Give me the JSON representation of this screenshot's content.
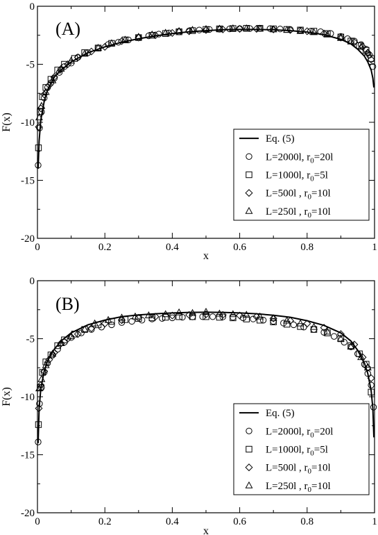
{
  "chart_data": [
    {
      "type": "line",
      "panel_label": "(A)",
      "xlabel": "x",
      "ylabel": "F(x)",
      "xlim": [
        0,
        1
      ],
      "ylim": [
        -20,
        0
      ],
      "xticks": [
        0,
        0.2,
        0.4,
        0.6,
        0.8,
        1
      ],
      "yticks": [
        0,
        -5,
        -10,
        -15,
        -20
      ],
      "xtick_labels": [
        "0",
        "0.2",
        "0.4",
        "0.6",
        "0.8",
        "1"
      ],
      "ytick_labels": [
        "0",
        "-5",
        "-10",
        "-15",
        "-20"
      ],
      "legend_position": "lower-right",
      "series": [
        {
          "name": "Eq. (5)",
          "style": "line",
          "marker": "none",
          "x": [
            0.002,
            0.005,
            0.01,
            0.02,
            0.03,
            0.05,
            0.07,
            0.1,
            0.15,
            0.2,
            0.25,
            0.3,
            0.35,
            0.4,
            0.45,
            0.5,
            0.55,
            0.6,
            0.65,
            0.7,
            0.75,
            0.8,
            0.85,
            0.9,
            0.93,
            0.95,
            0.97,
            0.98,
            0.99,
            0.995,
            0.998
          ],
          "y": [
            -14.0,
            -11.6,
            -9.8,
            -8.2,
            -7.2,
            -6.1,
            -5.5,
            -4.8,
            -4.0,
            -3.5,
            -3.1,
            -2.8,
            -2.55,
            -2.35,
            -2.2,
            -2.1,
            -2.02,
            -2.0,
            -2.0,
            -2.03,
            -2.1,
            -2.22,
            -2.45,
            -2.85,
            -3.25,
            -3.7,
            -4.3,
            -4.8,
            -5.5,
            -6.2,
            -7.0
          ]
        },
        {
          "name_parts": [
            "L=2000l, r",
            "0",
            "=20l"
          ],
          "style": "marker",
          "marker": "circle",
          "x": [
            0.002,
            0.006,
            0.012,
            0.02,
            0.03,
            0.04,
            0.05,
            0.065,
            0.08,
            0.1,
            0.12,
            0.15,
            0.18,
            0.21,
            0.24,
            0.27,
            0.3,
            0.33,
            0.36,
            0.39,
            0.42,
            0.45,
            0.48,
            0.51,
            0.54,
            0.57,
            0.6,
            0.63,
            0.66,
            0.69,
            0.72,
            0.75,
            0.78,
            0.81,
            0.84,
            0.87,
            0.9,
            0.92,
            0.94,
            0.96,
            0.975,
            0.985,
            0.995
          ],
          "y": [
            -13.7,
            -10.5,
            -9.1,
            -7.9,
            -7.0,
            -6.6,
            -6.2,
            -5.7,
            -5.2,
            -4.9,
            -4.4,
            -4.0,
            -3.6,
            -3.3,
            -3.1,
            -2.9,
            -2.7,
            -2.55,
            -2.4,
            -2.3,
            -2.2,
            -2.12,
            -2.05,
            -2.0,
            -1.97,
            -1.95,
            -1.93,
            -1.92,
            -1.92,
            -1.93,
            -1.96,
            -2.0,
            -2.08,
            -2.15,
            -2.2,
            -2.35,
            -2.6,
            -2.8,
            -3.0,
            -3.3,
            -3.7,
            -4.2,
            -5.2
          ]
        },
        {
          "name_parts": [
            "L=1000l, r",
            "0",
            "=5l"
          ],
          "style": "marker",
          "marker": "square",
          "x": [
            0.003,
            0.008,
            0.015,
            0.025,
            0.04,
            0.06,
            0.08,
            0.11,
            0.14,
            0.18,
            0.22,
            0.26,
            0.3,
            0.34,
            0.38,
            0.42,
            0.46,
            0.5,
            0.54,
            0.58,
            0.62,
            0.66,
            0.7,
            0.74,
            0.78,
            0.82,
            0.86,
            0.9,
            0.93,
            0.955,
            0.975,
            0.99
          ],
          "y": [
            -12.2,
            -9.1,
            -7.8,
            -7.0,
            -6.3,
            -5.5,
            -5.0,
            -4.5,
            -4.0,
            -3.6,
            -3.2,
            -2.9,
            -2.7,
            -2.5,
            -2.35,
            -2.2,
            -2.1,
            -2.0,
            -1.95,
            -1.92,
            -1.9,
            -1.9,
            -1.95,
            -2.0,
            -2.05,
            -2.15,
            -2.35,
            -2.65,
            -3.0,
            -3.4,
            -3.8,
            -4.5
          ]
        },
        {
          "name_parts": [
            "L=500l  , r",
            "0",
            "=10l"
          ],
          "style": "marker",
          "marker": "diamond",
          "x": [
            0.004,
            0.01,
            0.02,
            0.035,
            0.05,
            0.07,
            0.09,
            0.12,
            0.16,
            0.2,
            0.25,
            0.3,
            0.35,
            0.4,
            0.45,
            0.5,
            0.55,
            0.6,
            0.65,
            0.7,
            0.75,
            0.8,
            0.85,
            0.9,
            0.94,
            0.965,
            0.98,
            0.99
          ],
          "y": [
            -10.4,
            -8.8,
            -7.6,
            -6.8,
            -6.1,
            -5.4,
            -5.0,
            -4.4,
            -3.9,
            -3.5,
            -3.0,
            -2.7,
            -2.5,
            -2.3,
            -2.15,
            -2.05,
            -2.0,
            -1.95,
            -1.95,
            -2.0,
            -2.05,
            -2.15,
            -2.35,
            -2.7,
            -3.1,
            -3.5,
            -4.0,
            -4.6
          ]
        },
        {
          "name_parts": [
            "L=250l  , r",
            "0",
            "=10l"
          ],
          "style": "marker",
          "marker": "triangle",
          "x": [
            0.005,
            0.012,
            0.025,
            0.045,
            0.07,
            0.1,
            0.14,
            0.18,
            0.22,
            0.26,
            0.3,
            0.34,
            0.38,
            0.42,
            0.46,
            0.5,
            0.54,
            0.58,
            0.62,
            0.66,
            0.7,
            0.74,
            0.78,
            0.82,
            0.86,
            0.9,
            0.93,
            0.96,
            0.98
          ],
          "y": [
            -9.6,
            -8.6,
            -7.4,
            -6.4,
            -5.4,
            -4.7,
            -4.1,
            -3.6,
            -3.2,
            -2.9,
            -2.65,
            -2.45,
            -2.3,
            -2.15,
            -2.05,
            -1.98,
            -1.95,
            -1.92,
            -1.92,
            -1.95,
            -2.0,
            -2.05,
            -2.15,
            -2.25,
            -2.45,
            -2.75,
            -3.05,
            -3.5,
            -4.0
          ]
        }
      ]
    },
    {
      "type": "line",
      "panel_label": "(B)",
      "xlabel": "x",
      "ylabel": "F(x)",
      "xlim": [
        0,
        1
      ],
      "ylim": [
        -20,
        0
      ],
      "xticks": [
        0,
        0.2,
        0.4,
        0.6,
        0.8,
        1
      ],
      "yticks": [
        0,
        -5,
        -10,
        -15,
        -20
      ],
      "xtick_labels": [
        "0",
        "0.2",
        "0.4",
        "0.6",
        "0.8",
        "1"
      ],
      "ytick_labels": [
        "0",
        "-5",
        "-10",
        "-15",
        "-20"
      ],
      "legend_position": "lower-right",
      "series": [
        {
          "name": "Eq. (5)",
          "style": "line",
          "marker": "none",
          "x": [
            0.002,
            0.005,
            0.01,
            0.02,
            0.03,
            0.05,
            0.07,
            0.1,
            0.15,
            0.2,
            0.25,
            0.3,
            0.35,
            0.4,
            0.45,
            0.5,
            0.55,
            0.6,
            0.65,
            0.7,
            0.75,
            0.8,
            0.85,
            0.9,
            0.93,
            0.95,
            0.97,
            0.98,
            0.99,
            0.995,
            0.998
          ],
          "y": [
            -14.0,
            -11.0,
            -9.3,
            -7.8,
            -6.9,
            -5.9,
            -5.2,
            -4.5,
            -3.8,
            -3.4,
            -3.1,
            -2.95,
            -2.85,
            -2.78,
            -2.73,
            -2.72,
            -2.73,
            -2.78,
            -2.85,
            -2.98,
            -3.15,
            -3.45,
            -3.85,
            -4.5,
            -5.2,
            -6.0,
            -7.1,
            -8.0,
            -9.5,
            -11.0,
            -13.5
          ]
        },
        {
          "name_parts": [
            "L=2000l, r",
            "0",
            "=20l"
          ],
          "style": "marker",
          "marker": "circle",
          "x": [
            0.002,
            0.006,
            0.012,
            0.02,
            0.03,
            0.045,
            0.06,
            0.08,
            0.1,
            0.13,
            0.16,
            0.19,
            0.22,
            0.25,
            0.28,
            0.31,
            0.34,
            0.37,
            0.4,
            0.43,
            0.46,
            0.49,
            0.52,
            0.55,
            0.58,
            0.61,
            0.64,
            0.67,
            0.7,
            0.73,
            0.76,
            0.79,
            0.82,
            0.85,
            0.88,
            0.91,
            0.93,
            0.95,
            0.97,
            0.98,
            0.99,
            0.997
          ],
          "y": [
            -13.9,
            -10.6,
            -9.2,
            -7.9,
            -7.1,
            -6.4,
            -5.9,
            -5.3,
            -4.9,
            -4.5,
            -4.2,
            -4.0,
            -3.8,
            -3.6,
            -3.5,
            -3.4,
            -3.3,
            -3.25,
            -3.2,
            -3.15,
            -3.12,
            -3.1,
            -3.1,
            -3.12,
            -3.15,
            -3.2,
            -3.3,
            -3.4,
            -3.5,
            -3.65,
            -3.8,
            -4.0,
            -4.2,
            -4.45,
            -4.8,
            -5.3,
            -5.7,
            -6.3,
            -7.2,
            -8.0,
            -9.0,
            -10.9
          ]
        },
        {
          "name_parts": [
            "L=1000l, r",
            "0",
            "=5l"
          ],
          "style": "marker",
          "marker": "square",
          "x": [
            0.003,
            0.008,
            0.015,
            0.025,
            0.04,
            0.06,
            0.08,
            0.11,
            0.14,
            0.18,
            0.22,
            0.26,
            0.3,
            0.34,
            0.38,
            0.42,
            0.46,
            0.5,
            0.54,
            0.58,
            0.62,
            0.66,
            0.7,
            0.74,
            0.78,
            0.82,
            0.86,
            0.9,
            0.93,
            0.955,
            0.975,
            0.99
          ],
          "y": [
            -12.4,
            -9.2,
            -7.9,
            -7.0,
            -6.4,
            -5.6,
            -5.1,
            -4.6,
            -4.2,
            -3.8,
            -3.5,
            -3.35,
            -3.25,
            -3.2,
            -3.15,
            -3.1,
            -3.1,
            -3.1,
            -3.15,
            -3.2,
            -3.3,
            -3.4,
            -3.55,
            -3.75,
            -3.95,
            -4.2,
            -4.5,
            -5.0,
            -5.6,
            -6.3,
            -7.2,
            -9.6
          ]
        },
        {
          "name_parts": [
            "L=500l  , r",
            "0",
            "=10l"
          ],
          "style": "marker",
          "marker": "diamond",
          "x": [
            0.004,
            0.01,
            0.02,
            0.035,
            0.05,
            0.07,
            0.09,
            0.12,
            0.16,
            0.2,
            0.25,
            0.3,
            0.35,
            0.4,
            0.45,
            0.5,
            0.55,
            0.6,
            0.65,
            0.7,
            0.75,
            0.8,
            0.85,
            0.9,
            0.94,
            0.965,
            0.98,
            0.99
          ],
          "y": [
            -11.0,
            -9.0,
            -7.8,
            -6.8,
            -6.2,
            -5.4,
            -5.0,
            -4.6,
            -4.1,
            -3.7,
            -3.4,
            -3.2,
            -3.1,
            -3.0,
            -2.95,
            -2.9,
            -2.95,
            -3.0,
            -3.1,
            -3.25,
            -3.45,
            -3.7,
            -4.05,
            -4.6,
            -5.5,
            -6.6,
            -7.5,
            -8.4
          ]
        },
        {
          "name_parts": [
            "L=250l  , r",
            "0",
            "=10l"
          ],
          "style": "marker",
          "marker": "triangle",
          "x": [
            0.005,
            0.012,
            0.025,
            0.045,
            0.07,
            0.1,
            0.14,
            0.17,
            0.21,
            0.25,
            0.29,
            0.33,
            0.38,
            0.42,
            0.46,
            0.5,
            0.54,
            0.58,
            0.62,
            0.66,
            0.7,
            0.74,
            0.78,
            0.82,
            0.86,
            0.9,
            0.93,
            0.96,
            0.98
          ],
          "y": [
            -9.3,
            -8.5,
            -7.3,
            -6.3,
            -5.4,
            -4.8,
            -4.2,
            -3.7,
            -3.4,
            -3.2,
            -3.1,
            -3.0,
            -2.9,
            -2.75,
            -2.8,
            -2.7,
            -2.85,
            -2.9,
            -2.95,
            -3.1,
            -3.25,
            -3.45,
            -3.7,
            -4.0,
            -4.4,
            -5.0,
            -5.7,
            -6.6,
            -7.5
          ]
        }
      ]
    }
  ]
}
